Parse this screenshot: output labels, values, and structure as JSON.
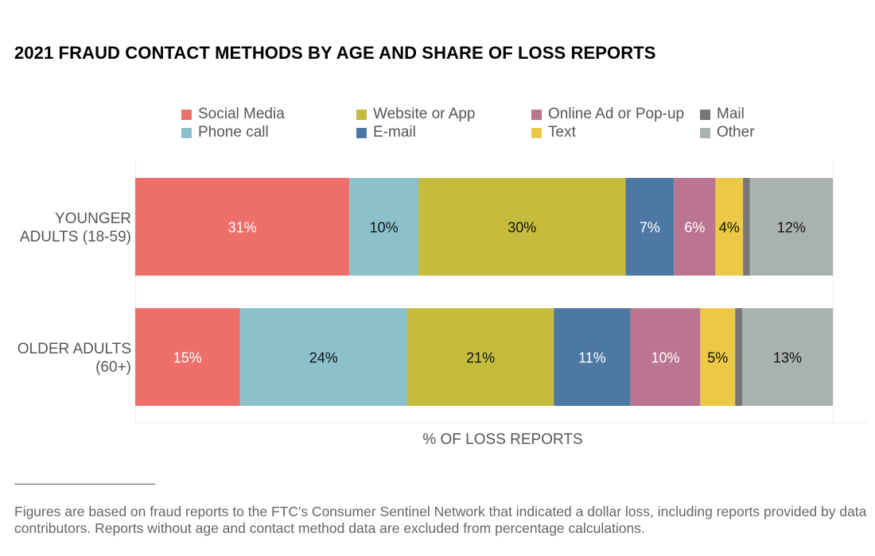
{
  "chart_data": {
    "type": "bar",
    "orientation": "horizontal",
    "stacked": true,
    "title": "2021 FRAUD CONTACT METHODS BY AGE AND SHARE OF LOSS REPORTS",
    "xlabel": "% OF LOSS REPORTS",
    "ylabel": "",
    "xlim": [
      0,
      100
    ],
    "grid": false,
    "legend_position": "top",
    "categories": [
      "YOUNGER ADULTS (18-59)",
      "OLDER ADULTS (60+)"
    ],
    "category_lines": [
      [
        "YOUNGER",
        "ADULTS (18-59)"
      ],
      [
        "OLDER ADULTS",
        "(60+)"
      ]
    ],
    "series": [
      {
        "name": "Social Media",
        "color": "#ee6f6a",
        "label_color": "#ffffff",
        "values": [
          31,
          15
        ],
        "labels": [
          "31%",
          "15%"
        ]
      },
      {
        "name": "Phone call",
        "color": "#8cc1cb",
        "label_color": "#111111",
        "values": [
          10,
          24
        ],
        "labels": [
          "10%",
          "24%"
        ]
      },
      {
        "name": "Website or App",
        "color": "#c5bc3e",
        "label_color": "#111111",
        "values": [
          30,
          21
        ],
        "labels": [
          "30%",
          "21%"
        ]
      },
      {
        "name": "E-mail",
        "color": "#4e78a4",
        "label_color": "#ffffff",
        "values": [
          7,
          11
        ],
        "labels": [
          "7%",
          "11%"
        ]
      },
      {
        "name": "Online Ad or Pop-up",
        "color": "#bb7590",
        "label_color": "#ffffff",
        "values": [
          6,
          10
        ],
        "labels": [
          "6%",
          "10%"
        ]
      },
      {
        "name": "Text",
        "color": "#ebc845",
        "label_color": "#111111",
        "values": [
          4,
          5
        ],
        "labels": [
          "4%",
          "5%"
        ]
      },
      {
        "name": "Mail",
        "color": "#767676",
        "label_color": "#ffffff",
        "values": [
          1,
          1
        ],
        "labels": [
          "",
          ""
        ]
      },
      {
        "name": "Other",
        "color": "#a9b3ae",
        "label_color": "#111111",
        "values": [
          12,
          13
        ],
        "labels": [
          "12%",
          "13%"
        ]
      }
    ],
    "legend_order": [
      "Social Media",
      "Website or App",
      "Online Ad or Pop-up",
      "Mail",
      "Phone call",
      "E-mail",
      "Text",
      "Other"
    ]
  },
  "footnote": "Figures are based on fraud reports to the FTC's Consumer Sentinel Network that indicated a dollar loss, including reports provided by data contributors. Reports without age and contact method data are excluded from percentage calculations."
}
